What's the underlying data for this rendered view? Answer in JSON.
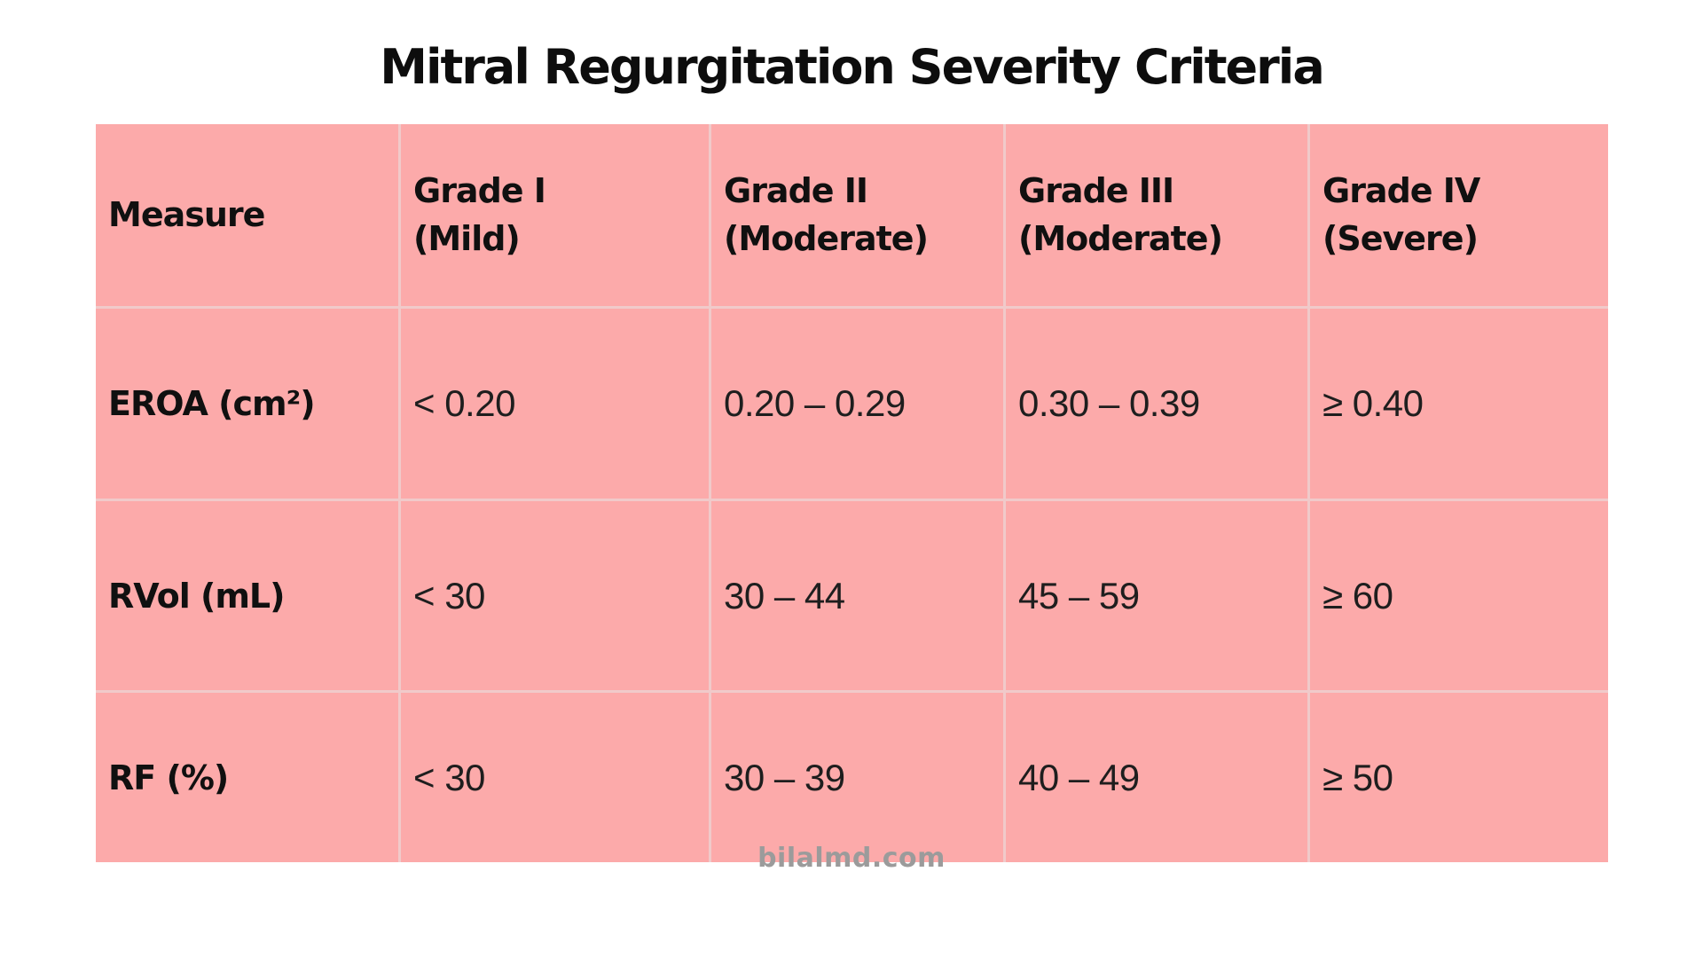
{
  "page": {
    "title": "Mitral Regurgitation Severity Criteria"
  },
  "footer": {
    "watermark": "bilalmd.com"
  },
  "colors": {
    "page_bg": "#ffffff",
    "table_bg": "#fcaaaa",
    "grid_line": "#f0caca",
    "title_text": "#0d0d0d",
    "cell_text": "#1e1e1e",
    "watermark_text": "#9b9b9b"
  },
  "chart_data": {
    "type": "table",
    "title": "Mitral Regurgitation Severity Criteria",
    "columns": [
      "Measure",
      "Grade I (Mild)",
      "Grade II (Moderate)",
      "Grade III (Moderate)",
      "Grade IV (Severe)"
    ],
    "header_cells": [
      {
        "line1": "Measure",
        "line2": ""
      },
      {
        "line1": "Grade I",
        "line2": "(Mild)"
      },
      {
        "line1": "Grade II",
        "line2": "(Moderate)"
      },
      {
        "line1": "Grade III",
        "line2": "(Moderate)"
      },
      {
        "line1": "Grade IV",
        "line2": "(Severe)"
      }
    ],
    "rows": [
      {
        "cells": [
          "EROA (cm²)",
          "< 0.20",
          "0.20 – 0.29",
          "0.30 – 0.39",
          "≥ 0.40"
        ]
      },
      {
        "cells": [
          "RVol (mL)",
          "< 30",
          "30 – 44",
          "45 – 59",
          "≥ 60"
        ]
      },
      {
        "cells": [
          "RF (%)",
          "< 30",
          "30 – 39",
          "40 – 49",
          "≥ 50"
        ]
      }
    ]
  }
}
